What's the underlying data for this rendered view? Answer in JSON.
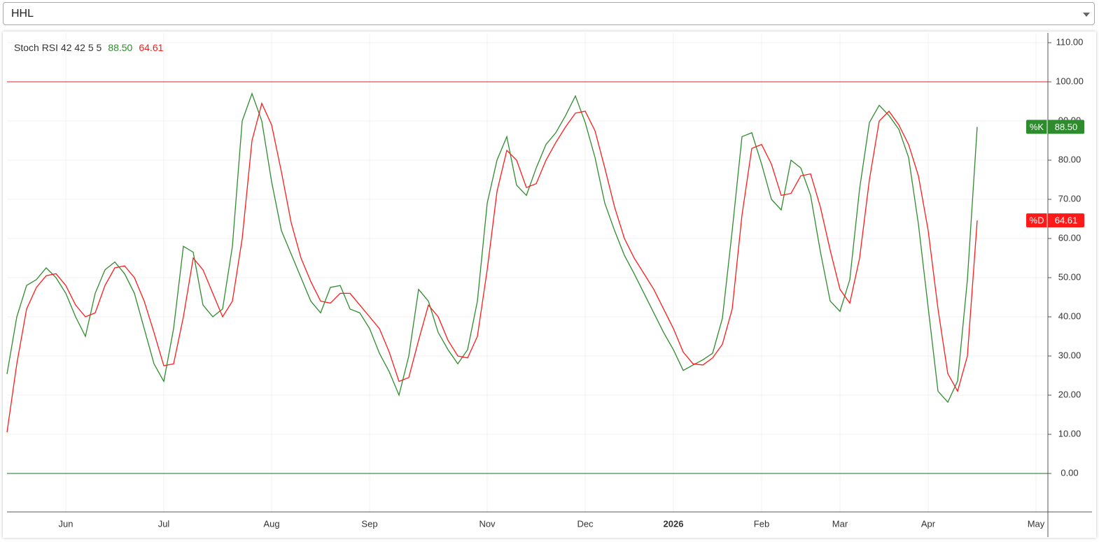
{
  "dropdown": {
    "selected": "HHL"
  },
  "chart_data": {
    "type": "line",
    "title": "Stoch RSI 42 42 5 5",
    "categories": [
      null,
      null,
      null,
      null,
      null,
      null,
      "Jun",
      null,
      null,
      null,
      null,
      null,
      null,
      null,
      null,
      null,
      "Jul",
      null,
      null,
      null,
      null,
      null,
      null,
      null,
      null,
      null,
      null,
      "Aug",
      null,
      null,
      null,
      null,
      null,
      null,
      null,
      null,
      null,
      "Sep",
      null,
      null,
      null,
      null,
      null,
      null,
      null,
      null,
      null,
      null,
      null,
      "Nov",
      null,
      null,
      null,
      null,
      null,
      null,
      null,
      null,
      null,
      "Dec",
      null,
      null,
      null,
      null,
      null,
      null,
      null,
      null,
      "2026",
      null,
      null,
      null,
      null,
      null,
      null,
      null,
      null,
      "Feb",
      null,
      null,
      null,
      null,
      null,
      null,
      null,
      "Mar",
      null,
      null,
      null,
      null,
      null,
      null,
      null,
      null,
      "Apr",
      null,
      null,
      null,
      null,
      null,
      null,
      null,
      null,
      null,
      null,
      "May",
      null
    ],
    "bold_categories": [
      "2026"
    ],
    "series": [
      {
        "name": "%K",
        "color": "#2e8b2e",
        "last_label": "88.50",
        "values": [
          25.4,
          40,
          48,
          49.5,
          52.5,
          50,
          46,
          40,
          35,
          46,
          52,
          54,
          51,
          46,
          37,
          28,
          23.5,
          37,
          58,
          56.5,
          43,
          40,
          42,
          58,
          90,
          97,
          90,
          74.5,
          62,
          56,
          50,
          44,
          41,
          47.5,
          48,
          42,
          41,
          37,
          30.7,
          26,
          20,
          30,
          47,
          44,
          36,
          31.6,
          28,
          31.6,
          44,
          69,
          80,
          86,
          73.6,
          71,
          78,
          84,
          87,
          91.4,
          96.4,
          89.6,
          80.7,
          69,
          62,
          55.7,
          51,
          46,
          41,
          36,
          31.6,
          26.3,
          27.7,
          29,
          30.7,
          39.6,
          62,
          86,
          87,
          79,
          70,
          67.3,
          80,
          78,
          71,
          56.6,
          44,
          41.4,
          49.5,
          72.7,
          89.6,
          94,
          91.4,
          87.9,
          80.7,
          63.7,
          42.3,
          21,
          18.2,
          23.6,
          49.5,
          88.5,
          null,
          null,
          null,
          null,
          null,
          null,
          null
        ]
      },
      {
        "name": "%D",
        "color": "#ff1a1a",
        "last_label": "64.61",
        "values": [
          10.5,
          28,
          42,
          47.5,
          50.5,
          51,
          48,
          43,
          40,
          41,
          48,
          52.5,
          53,
          50,
          44,
          36,
          27.5,
          28,
          40,
          55,
          52,
          46,
          40,
          44,
          60,
          85,
          94.5,
          89,
          77,
          64,
          55,
          49,
          44,
          43.5,
          46,
          46,
          43,
          40,
          37,
          31,
          23.5,
          24.5,
          34,
          43,
          40,
          34,
          30,
          29.5,
          35,
          52,
          72,
          82.5,
          80,
          73,
          74,
          80,
          84.5,
          88.5,
          92,
          92.5,
          87.5,
          78,
          68,
          60,
          55,
          51,
          47,
          42,
          37,
          31,
          28,
          27.7,
          29.5,
          33,
          42,
          66,
          83,
          84,
          79,
          71,
          71.5,
          76,
          76.5,
          68,
          57,
          47,
          43.5,
          55,
          75,
          90,
          92.5,
          89,
          84,
          76,
          62,
          42,
          25.5,
          21,
          30,
          64.61,
          null,
          null,
          null,
          null,
          null,
          null,
          null
        ]
      }
    ],
    "hlines": [
      {
        "value": 100,
        "color": "#e02020"
      },
      {
        "value": 0,
        "color": "#1a6e1a"
      }
    ],
    "ylim": [
      -9.82,
      112.5
    ],
    "yticks": [
      {
        "value": 0,
        "label": "0.00"
      },
      {
        "value": 10,
        "label": "10.00"
      },
      {
        "value": 20,
        "label": "20.00"
      },
      {
        "value": 30,
        "label": "30.00"
      },
      {
        "value": 40,
        "label": "40.00"
      },
      {
        "value": 50,
        "label": "50.00"
      },
      {
        "value": 60,
        "label": "60.00"
      },
      {
        "value": 70,
        "label": "70.00"
      },
      {
        "value": 80,
        "label": "80.00"
      },
      {
        "value": 90,
        "label": "90.00"
      },
      {
        "value": 100,
        "label": "100.00"
      },
      {
        "value": 110,
        "label": "110.00"
      }
    ],
    "grid": true
  }
}
